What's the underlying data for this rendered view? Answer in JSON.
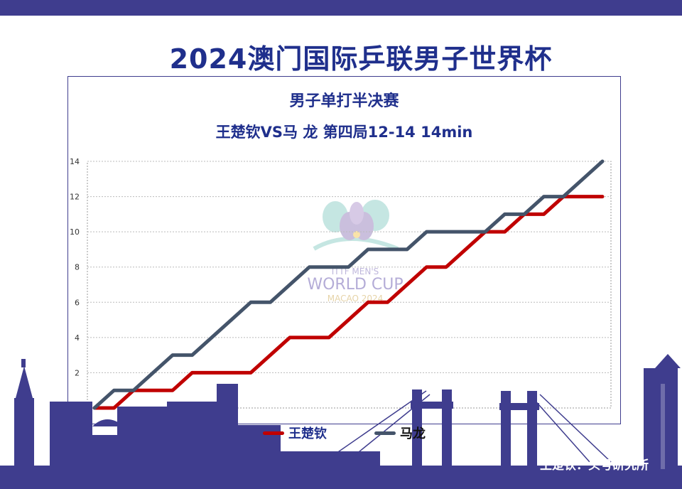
{
  "header": {
    "title": "2024澳门国际乒联男子世界杯"
  },
  "chart_data": {
    "type": "line",
    "title": "男子单打半决赛",
    "subtitle": "王楚钦VS马 龙 第四局12-14 14min",
    "ylim": [
      0,
      14
    ],
    "yticks": [
      2,
      4,
      6,
      8,
      10,
      12,
      14
    ],
    "grid": true,
    "legend_position": "bottom",
    "rally_count": 26,
    "series": [
      {
        "name": "王楚钦",
        "color": "#c00000",
        "x": [
          0,
          1,
          2,
          3,
          4,
          5,
          6,
          7,
          8,
          9,
          10,
          11,
          12,
          13,
          14,
          15,
          16,
          17,
          18,
          19,
          20,
          21,
          22,
          23,
          24,
          25,
          26
        ],
        "values": [
          0,
          0,
          1,
          1,
          1,
          2,
          2,
          2,
          2,
          3,
          4,
          4,
          4,
          5,
          6,
          6,
          7,
          8,
          8,
          9,
          10,
          10,
          11,
          11,
          12,
          12,
          12
        ]
      },
      {
        "name": "马龙",
        "color": "#44546a",
        "x": [
          0,
          1,
          2,
          3,
          4,
          5,
          6,
          7,
          8,
          9,
          10,
          11,
          12,
          13,
          14,
          15,
          16,
          17,
          18,
          19,
          20,
          21,
          22,
          23,
          24,
          25,
          26
        ],
        "values": [
          0,
          1,
          1,
          2,
          3,
          3,
          4,
          5,
          6,
          6,
          7,
          8,
          8,
          8,
          9,
          9,
          9,
          10,
          10,
          10,
          10,
          11,
          11,
          12,
          12,
          13,
          14
        ]
      }
    ]
  },
  "watermark": "王楚钦：头号研究所",
  "logo": {
    "lines": [
      "ITTF MEN'S",
      "WORLD CUP",
      "MACAO 2024"
    ]
  }
}
